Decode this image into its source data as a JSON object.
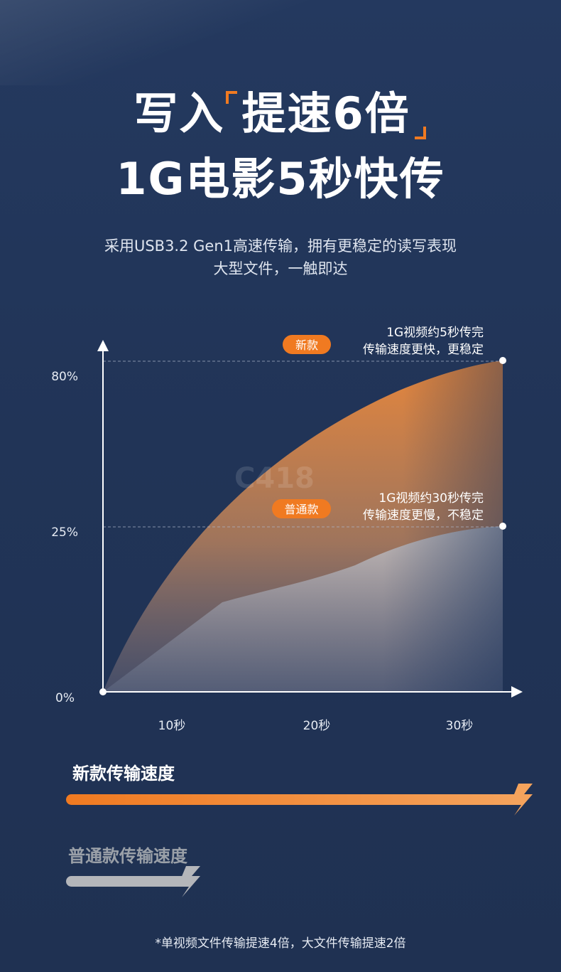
{
  "header": {
    "title_part1": "写入",
    "title_part2": "提速6倍",
    "title_line2": "1G电影5秒快传",
    "subtitle_line1": "采用USB3.2 Gen1高速传输，拥有更稳定的读写表现",
    "subtitle_line2": "大型文件，一触即达"
  },
  "colors": {
    "accent": "#f07a21",
    "background": "#213457",
    "old_series": "#b4b6ba"
  },
  "chart_data": {
    "type": "area",
    "ytick_labels": [
      "0%",
      "25%",
      "80%"
    ],
    "xtick_labels": [
      "10秒",
      "20秒",
      "30秒"
    ],
    "ylim": [
      0,
      80
    ],
    "grid": false,
    "series": [
      {
        "name": "新款",
        "note_line1": "1G视频约5秒传完",
        "note_line2": "传输速度更快，更稳定",
        "end_value": 80
      },
      {
        "name": "普通款",
        "note_line1": "1G视频约30秒传完",
        "note_line2": "传输速度更慢，不稳定",
        "end_value": 25
      }
    ]
  },
  "legend": {
    "new_label": "新款传输速度",
    "old_label": "普通款传输速度"
  },
  "watermark": "C418",
  "footnote": "*单视频文件传输提速4倍，大文件传输提速2倍"
}
